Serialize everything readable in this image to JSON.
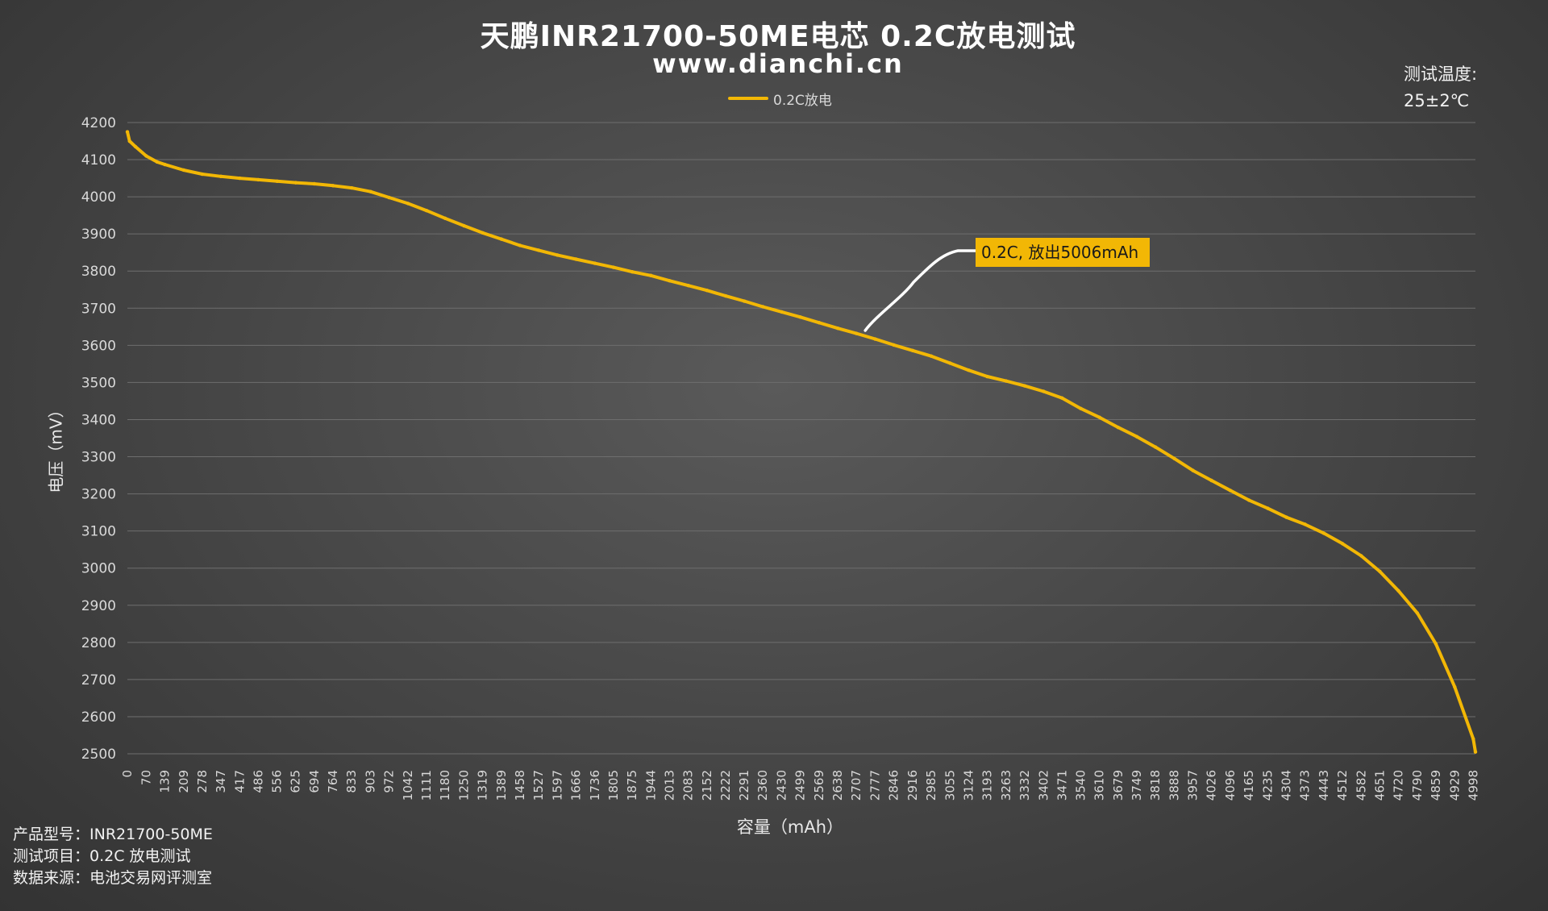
{
  "title": "天鹏INR21700-50ME电芯 0.2C放电测试",
  "subtitle": "www.dianchi.cn",
  "temperature": {
    "label": "测试温度:",
    "value": "25±2℃"
  },
  "footer": [
    "产品型号：INR21700-50ME",
    "测试项目：0.2C 放电测试",
    "数据来源：电池交易网评测室"
  ],
  "colors": {
    "series": "#f2b705",
    "grid": "#6e6e6e",
    "leader": "#ffffff"
  },
  "chart_data": {
    "type": "line",
    "title": "天鹏INR21700-50ME电芯 0.2C放电测试",
    "xlabel": "容量（mAh）",
    "ylabel": "电压（mV）",
    "ylim": [
      2500,
      4200
    ],
    "yticks": [
      2500,
      2600,
      2700,
      2800,
      2900,
      3000,
      3100,
      3200,
      3300,
      3400,
      3500,
      3600,
      3700,
      3800,
      3900,
      4000,
      4100,
      4200
    ],
    "xlim": [
      0,
      5006
    ],
    "xticks": [
      0,
      70,
      139,
      209,
      278,
      347,
      417,
      486,
      556,
      625,
      694,
      764,
      833,
      903,
      972,
      1042,
      1111,
      1180,
      1250,
      1319,
      1389,
      1458,
      1527,
      1597,
      1666,
      1736,
      1805,
      1875,
      1944,
      2013,
      2083,
      2152,
      2222,
      2291,
      2360,
      2430,
      2499,
      2569,
      2638,
      2707,
      2777,
      2846,
      2916,
      2985,
      3055,
      3124,
      3193,
      3263,
      3332,
      3402,
      3471,
      3540,
      3610,
      3679,
      3749,
      3818,
      3888,
      3957,
      4026,
      4096,
      4165,
      4235,
      4304,
      4373,
      4443,
      4512,
      4582,
      4651,
      4720,
      4790,
      4859,
      4929,
      4998
    ],
    "grid": true,
    "legend_position": "top-center",
    "series": [
      {
        "name": "0.2C放电",
        "color": "#f2b705",
        "x": [
          0,
          8,
          30,
          70,
          110,
          139,
          209,
          278,
          347,
          417,
          486,
          556,
          625,
          694,
          764,
          833,
          903,
          972,
          1042,
          1111,
          1180,
          1250,
          1319,
          1389,
          1458,
          1527,
          1597,
          1666,
          1736,
          1805,
          1875,
          1944,
          2013,
          2083,
          2152,
          2222,
          2291,
          2360,
          2430,
          2499,
          2569,
          2638,
          2707,
          2777,
          2846,
          2916,
          2985,
          3055,
          3124,
          3193,
          3263,
          3332,
          3402,
          3471,
          3540,
          3610,
          3679,
          3749,
          3818,
          3888,
          3957,
          4026,
          4096,
          4165,
          4235,
          4304,
          4373,
          4443,
          4512,
          4582,
          4651,
          4720,
          4790,
          4859,
          4929,
          4998,
          5006
        ],
        "values": [
          4175,
          4150,
          4135,
          4110,
          4094,
          4087,
          4072,
          4061,
          4055,
          4050,
          4046,
          4042,
          4038,
          4035,
          4030,
          4024,
          4014,
          3998,
          3982,
          3963,
          3942,
          3922,
          3903,
          3886,
          3869,
          3856,
          3843,
          3832,
          3821,
          3810,
          3798,
          3788,
          3774,
          3761,
          3748,
          3733,
          3719,
          3704,
          3690,
          3676,
          3661,
          3646,
          3632,
          3617,
          3601,
          3586,
          3571,
          3552,
          3533,
          3516,
          3504,
          3491,
          3476,
          3458,
          3430,
          3406,
          3379,
          3354,
          3326,
          3295,
          3263,
          3236,
          3209,
          3183,
          3161,
          3137,
          3118,
          3094,
          3066,
          3033,
          2991,
          2939,
          2879,
          2796,
          2680,
          2540,
          2505
        ]
      }
    ],
    "annotations": [
      {
        "text": "0.2C, 放出5006mAh",
        "x": 2740,
        "y": 3640
      }
    ]
  }
}
